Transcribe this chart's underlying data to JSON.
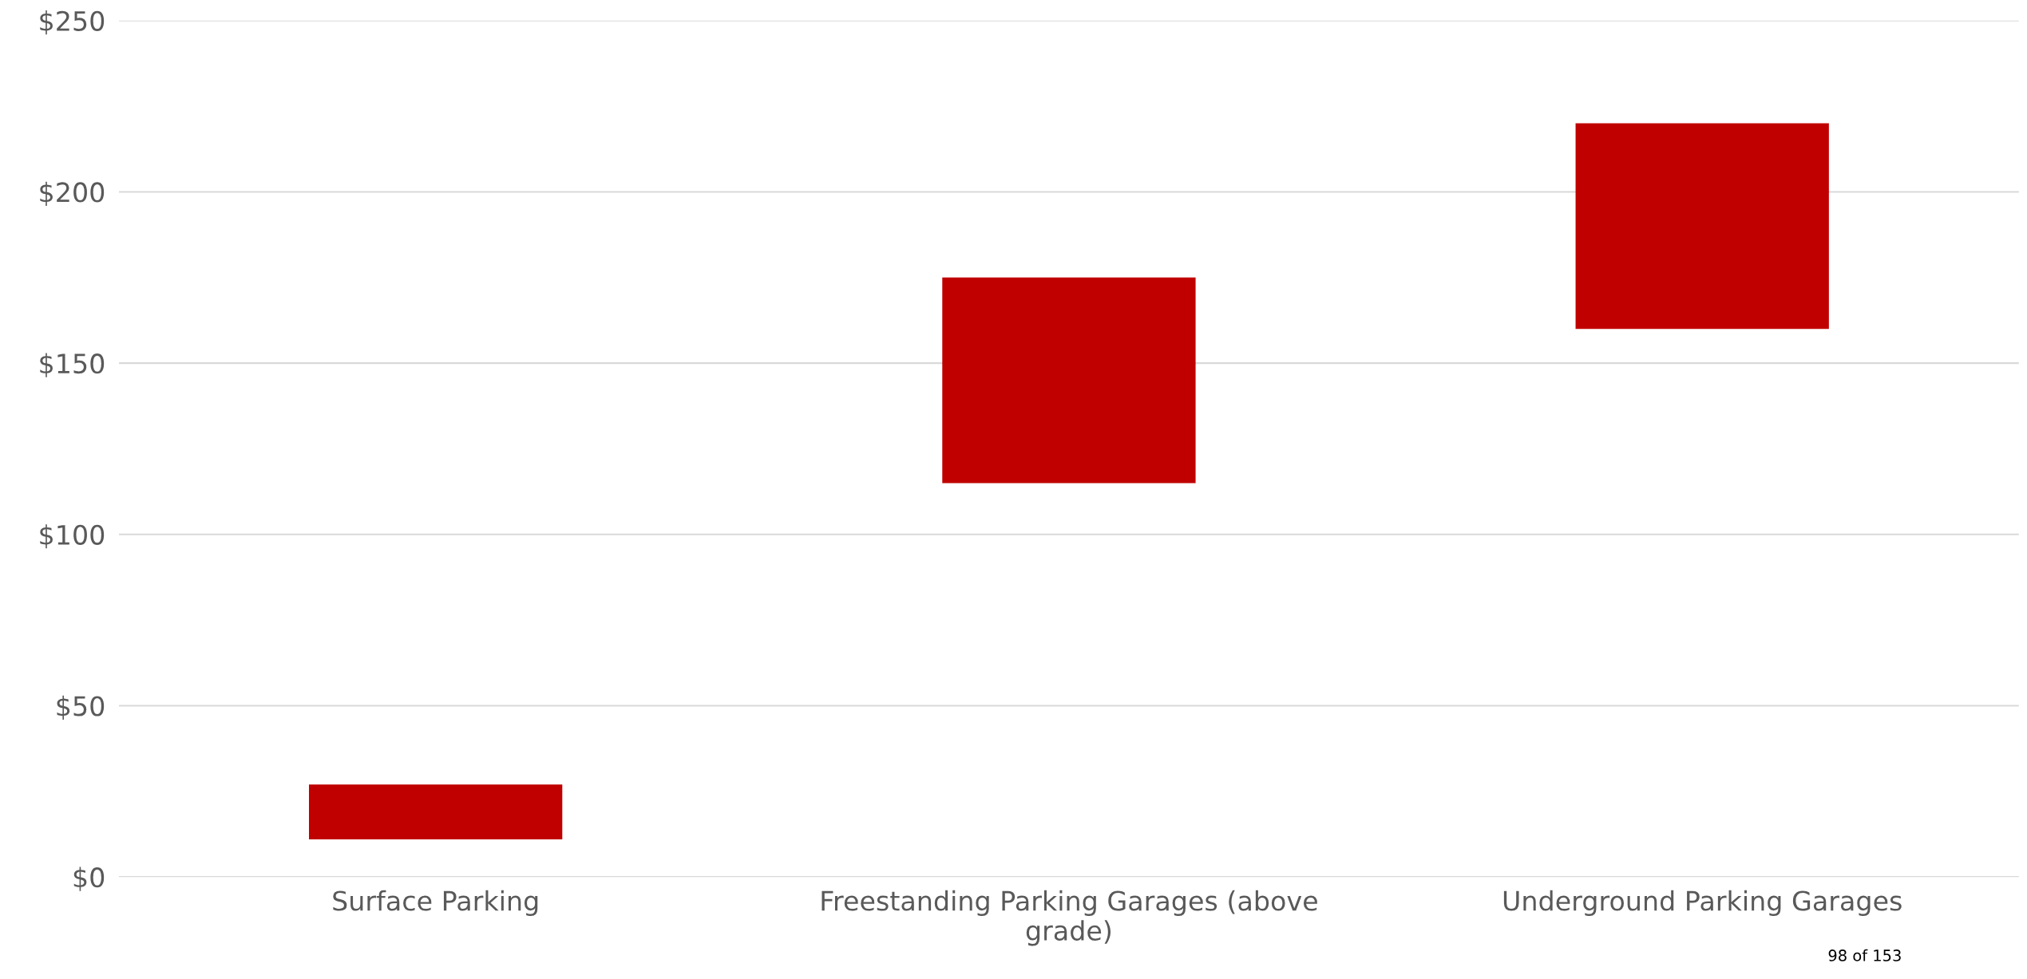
{
  "chart_data": {
    "type": "bar",
    "categories": [
      "Surface Parking",
      "Freestanding Parking Garages (above grade)",
      "Underground Parking Garages"
    ],
    "base": [
      11,
      115,
      160
    ],
    "values": [
      16,
      60,
      60
    ],
    "color": "#c00000",
    "ylim": [
      0,
      250
    ],
    "yticks": [
      {
        "value": 0,
        "label": "$0"
      },
      {
        "value": 50,
        "label": "$50"
      },
      {
        "value": 100,
        "label": "$100"
      },
      {
        "value": 150,
        "label": "$150"
      },
      {
        "value": 200,
        "label": "$200"
      },
      {
        "value": 250,
        "label": "$250"
      }
    ],
    "grid": "y",
    "legend": false,
    "annotations": [
      "98 of 153"
    ]
  }
}
